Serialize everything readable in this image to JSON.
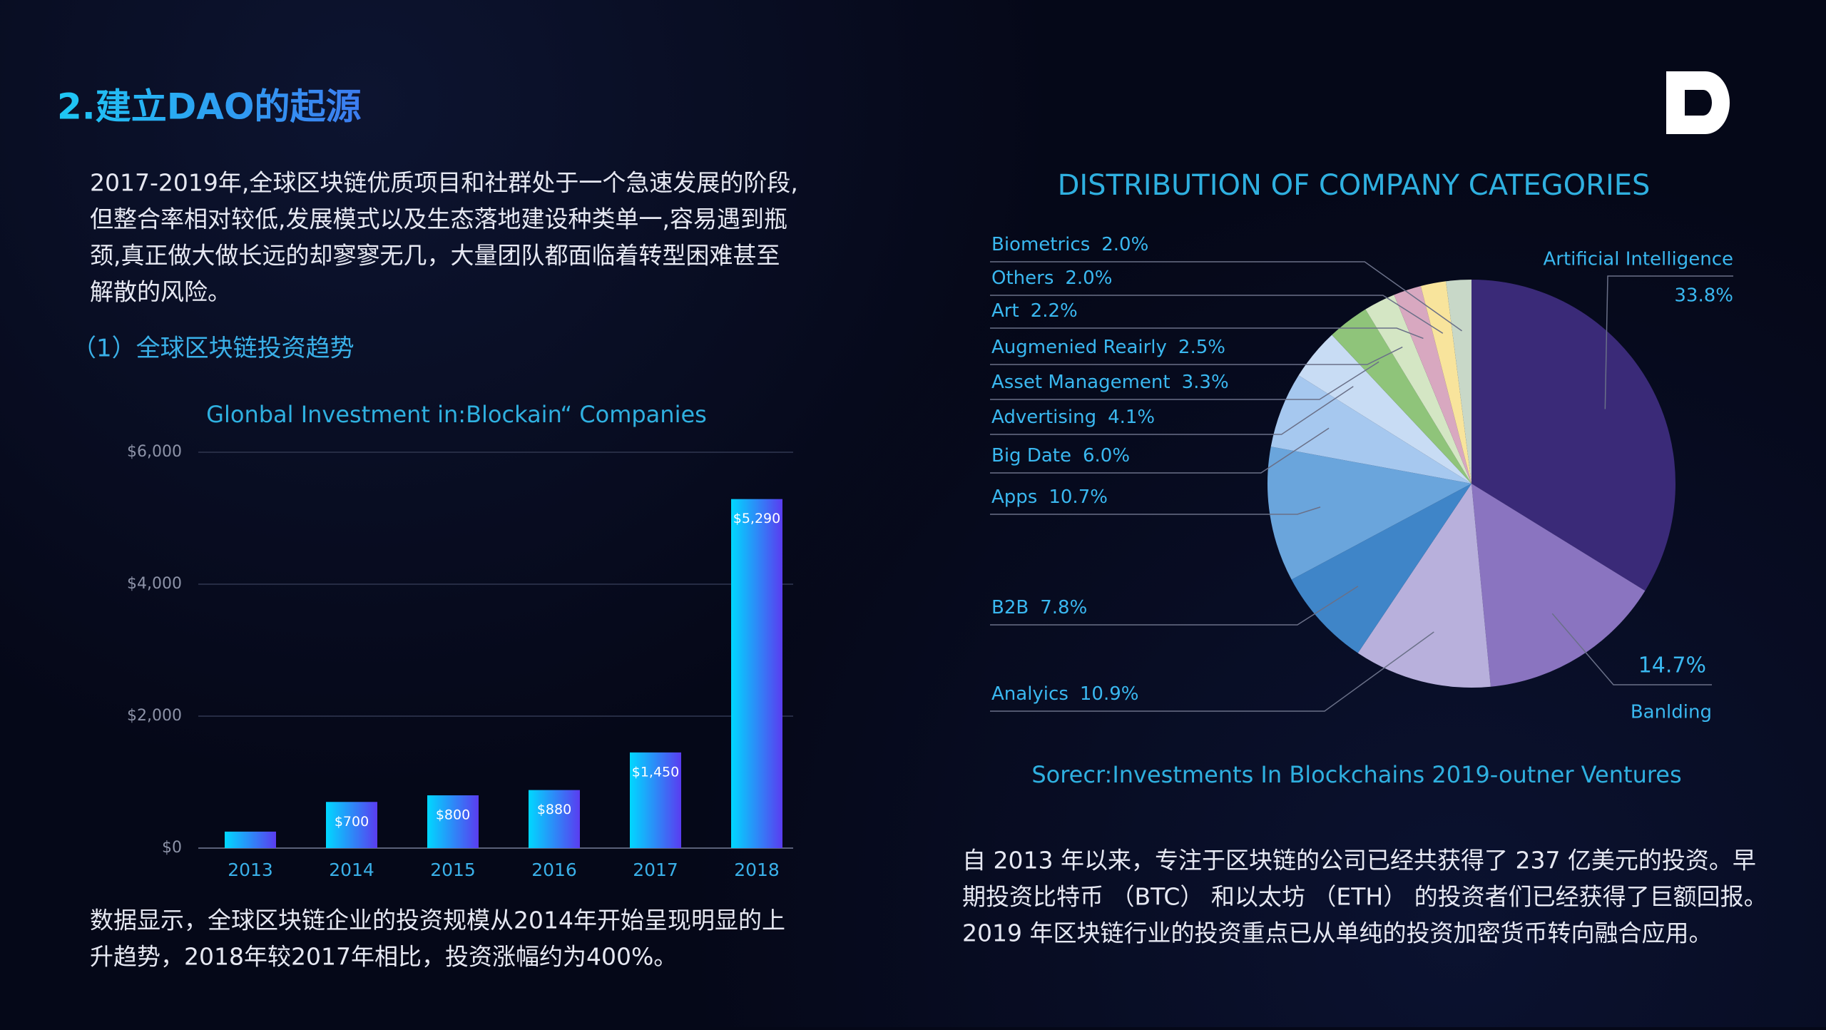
{
  "header": {
    "title": "2.建立DAO的起源"
  },
  "intro": {
    "lines": [
      "2017-2019年,全球区块链优质项目和社群处于一个急速发展的阶段,",
      "但整合率相对较低,发展模式以及生态落地建设种类单一,容易遇到瓶",
      "颈,真正做大做长远的却寥寥无几，大量团队都面临着转型困难甚至",
      "解散的风险。"
    ]
  },
  "section": {
    "heading": "（1）全球区块链投资趋势"
  },
  "bar_note": {
    "lines": [
      "数据显示，全球区块链企业的投资规模从2014年开始呈现明显的上",
      "升趋势，2018年较2017年相比，投资涨幅约为400%。"
    ]
  },
  "pie_note": {
    "lines": [
      "自 2013 年以来，专注于区块链的公司已经共获得了 237 亿美元的投资。早",
      "期投资比特币 （BTC） 和以太坊 （ETH） 的投资者们已经获得了巨额回报。",
      "2019 年区块链行业的投资重点已从单纯的投资加密货币转向融合应用。"
    ]
  },
  "chart_data": [
    {
      "type": "bar",
      "title": "Glonbal Investment in:Blockain“ Companies",
      "categories": [
        "2013",
        "2014",
        "2015",
        "2016",
        "2017",
        "2018"
      ],
      "values": [
        250,
        700,
        800,
        880,
        1450,
        5290
      ],
      "value_labels": [
        null,
        "$700",
        "$800",
        "$880",
        "$1,450",
        "$5,290"
      ],
      "ylim": [
        0,
        6000
      ],
      "yticks": [
        {
          "value": 0,
          "label": "$0"
        },
        {
          "value": 2000,
          "label": "$2,000"
        },
        {
          "value": 4000,
          "label": "$4,000"
        },
        {
          "value": 6000,
          "label": "$6,000"
        }
      ],
      "grid": true
    },
    {
      "type": "pie",
      "title": "DISTRIBUTION OF COMPANY CATEGORIES",
      "source": "Sorecr:Investments In Blockchains 2019-outner Ventures",
      "categories": [
        "Artificial Intelligence",
        "Banlding",
        "Analyics",
        "B2B",
        "Apps",
        "Big Date",
        "Advertising",
        "Asset Management",
        "Augmenied Reairly",
        "Art",
        "Others",
        "Biometrics"
      ],
      "values": [
        33.8,
        14.7,
        10.9,
        7.8,
        10.7,
        6.0,
        4.1,
        3.3,
        2.5,
        2.2,
        2.0,
        2.0
      ],
      "value_labels": [
        "33.8%",
        "14.7%",
        "10.9%",
        "7.8%",
        "10.7%",
        "6.0%",
        "4.1%",
        "3.3%",
        "2.5%",
        "2.2%",
        "2.0%",
        "2.0%"
      ],
      "colors": [
        "#3a2a78",
        "#8a74c0",
        "#b8b0dc",
        "#3f85c8",
        "#6aa5dc",
        "#a6c8ef",
        "#c8dcf4",
        "#8fc47a",
        "#d4e6c4",
        "#d8a8c0",
        "#f8e49c",
        "#c8d8c8"
      ]
    }
  ]
}
